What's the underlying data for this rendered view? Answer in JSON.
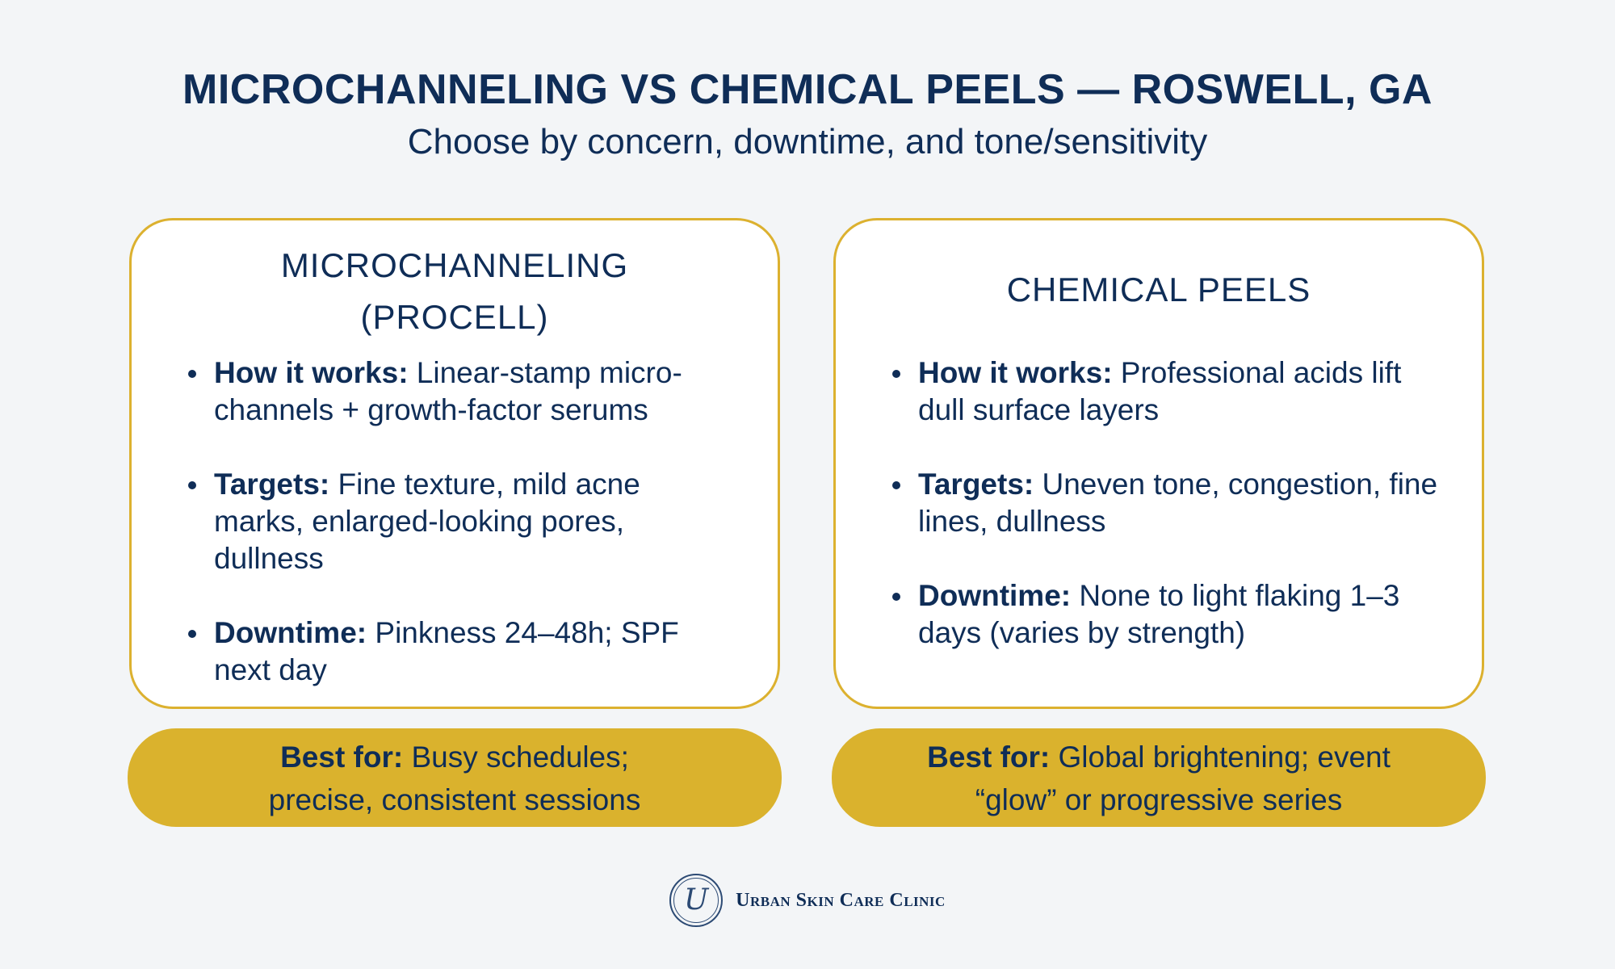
{
  "header": {
    "title": "MICROCHANNELING VS CHEMICAL PEELS — ROSWELL, GA",
    "subtitle": "Choose by concern, downtime, and tone/sensitivity"
  },
  "cards": [
    {
      "title_line1": "MICROCHANNELING",
      "title_line2": "(PROCELL)",
      "bullets": [
        {
          "label": "How it works:",
          "text": " Linear-stamp micro-channels + growth-factor serums"
        },
        {
          "label": "Targets:",
          "text": " Fine texture, mild acne marks, enlarged-looking pores, dullness"
        },
        {
          "label": "Downtime:",
          "text": " Pinkness 24–48h; SPF next day"
        }
      ],
      "best_for": {
        "label": "Best for:",
        "line1": " Busy schedules;",
        "line2": "precise, consistent sessions"
      }
    },
    {
      "title_line1": "CHEMICAL PEELS",
      "bullets": [
        {
          "label": "How it works:",
          "text": " Professional acids lift dull surface layers"
        },
        {
          "label": "Targets:",
          "text": " Uneven tone, congestion, fine lines, dullness"
        },
        {
          "label": "Downtime:",
          "text": " None to light flaking 1–3 days (varies by strength)"
        }
      ],
      "best_for": {
        "label": "Best for:",
        "line1": " Global brightening; event",
        "line2": "“glow” or progressive series"
      }
    }
  ],
  "footer": {
    "logo_letter": "U",
    "brand": "Urban Skin Care Clinic"
  },
  "colors": {
    "navy": "#0f2d57",
    "gold": "#dab22d",
    "background": "#f3f5f7"
  }
}
